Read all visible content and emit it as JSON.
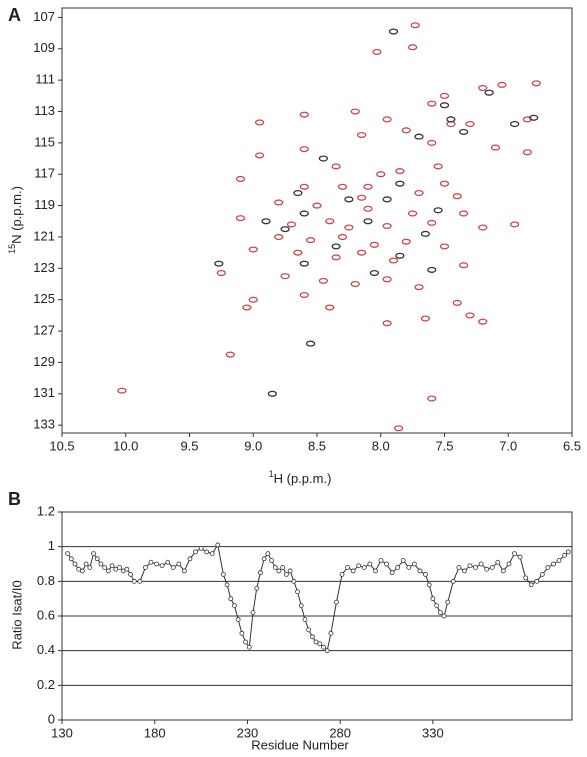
{
  "chart_data": [
    {
      "type": "scatter",
      "panel_label": "A",
      "x_label_sup": "1",
      "x_label": "H (p.p.m.)",
      "y_label_sup": "15",
      "y_label": "N (p.p.m.)",
      "xlim": [
        10.5,
        6.5
      ],
      "xticks": [
        10.5,
        {
          "value": 10,
          "label": "10.0"
        },
        9.5,
        {
          "value": 9,
          "label": "9.0"
        },
        8.5,
        {
          "value": 8,
          "label": "8.0"
        },
        7.5,
        {
          "value": 7,
          "label": "7.0"
        },
        6.5
      ],
      "ylim": [
        106.4,
        133.5
      ],
      "yticks": [
        107,
        109,
        111,
        113,
        115,
        117,
        119,
        121,
        123,
        125,
        127,
        129,
        131,
        133
      ],
      "series": [
        {
          "color": "#c5484c",
          "x": [
            7.73,
            7.75,
            8.03,
            7.2,
            7.05,
            6.78,
            7.6,
            7.5,
            8.6,
            8.2,
            7.95,
            7.45,
            7.3,
            6.85,
            8.95,
            8.15,
            7.8,
            7.6,
            7.1,
            8.95,
            8.6,
            6.85,
            8.35,
            8.0,
            7.85,
            7.55,
            8.6,
            8.3,
            8.15,
            7.7,
            7.4,
            8.8,
            8.5,
            8.1,
            7.75,
            7.35,
            9.1,
            8.7,
            8.4,
            8.25,
            7.95,
            7.6,
            7.2,
            6.95,
            8.8,
            8.55,
            8.3,
            8.05,
            7.8,
            7.5,
            9.0,
            8.65,
            8.35,
            8.15,
            7.9,
            7.35,
            9.25,
            8.75,
            8.45,
            8.2,
            7.95,
            7.7,
            9.0,
            8.6,
            8.4,
            7.4,
            9.05,
            7.3,
            7.95,
            7.65,
            7.2,
            9.18,
            10.03,
            7.6,
            7.86,
            8.1,
            7.5,
            9.1
          ],
          "y": [
            107.5,
            108.9,
            109.2,
            111.5,
            111.3,
            111.2,
            112.5,
            112.0,
            113.2,
            113.0,
            113.5,
            113.8,
            113.8,
            113.5,
            113.7,
            114.5,
            114.2,
            115.0,
            115.3,
            115.8,
            115.4,
            115.6,
            116.5,
            117.0,
            116.8,
            116.5,
            117.8,
            117.8,
            118.5,
            118.2,
            118.4,
            118.8,
            119.0,
            119.2,
            119.5,
            119.5,
            119.8,
            120.2,
            120.0,
            120.4,
            120.3,
            120.1,
            120.4,
            120.2,
            121.0,
            121.2,
            121.0,
            121.5,
            121.3,
            121.6,
            121.8,
            122.0,
            122.3,
            122.0,
            122.5,
            122.8,
            123.3,
            123.5,
            123.8,
            124.0,
            123.7,
            124.2,
            125.0,
            124.7,
            125.5,
            125.2,
            125.5,
            126.0,
            126.5,
            126.2,
            126.4,
            128.5,
            130.8,
            131.3,
            133.2,
            117.8,
            117.6,
            117.3
          ]
        },
        {
          "color": "#333333",
          "x": [
            7.9,
            7.15,
            7.5,
            7.45,
            7.35,
            6.95,
            6.8,
            7.7,
            8.65,
            8.25,
            7.95,
            7.55,
            8.6,
            8.1,
            7.65,
            8.75,
            8.35,
            7.85,
            9.27,
            8.6,
            8.05,
            7.6,
            8.55,
            8.85,
            8.45,
            7.85,
            8.9
          ],
          "y": [
            107.9,
            111.8,
            112.6,
            113.5,
            114.3,
            113.8,
            113.4,
            114.6,
            118.2,
            118.6,
            118.6,
            119.3,
            119.5,
            120.0,
            120.8,
            120.5,
            121.6,
            122.2,
            122.7,
            122.7,
            123.3,
            123.1,
            127.8,
            131.0,
            116.0,
            117.6,
            120.0
          ]
        }
      ]
    },
    {
      "type": "line",
      "panel_label": "B",
      "x_label": "Residue Number",
      "y_label": "Ratio Isat/I0",
      "xlim": [
        130,
        405
      ],
      "xticks": [
        130,
        180,
        230,
        280,
        330
      ],
      "ylim": [
        0,
        1.2
      ],
      "yticks": [
        0,
        0.2,
        0.4,
        0.6,
        0.8,
        1,
        1.2
      ],
      "grid": true,
      "series": [
        {
          "color": "#333333",
          "x": [
            133,
            135,
            137,
            139,
            141,
            143,
            145,
            147,
            149,
            151,
            153,
            155,
            157,
            159,
            161,
            163,
            165,
            167,
            169,
            172,
            175,
            178,
            181,
            184,
            187,
            190,
            193,
            196,
            199,
            202,
            205,
            208,
            211,
            214,
            217,
            219,
            221,
            223,
            225,
            227,
            229,
            231,
            233,
            235,
            237,
            239,
            241,
            243,
            245,
            247,
            249,
            251,
            253,
            255,
            257,
            259,
            261,
            263,
            265,
            267,
            269,
            271,
            273,
            275,
            278,
            281,
            284,
            287,
            290,
            293,
            296,
            299,
            302,
            305,
            308,
            311,
            314,
            317,
            320,
            323,
            326,
            328,
            330,
            332,
            334,
            336,
            338,
            341,
            344,
            347,
            350,
            353,
            356,
            359,
            362,
            365,
            368,
            371,
            374,
            377,
            380,
            383,
            386,
            389,
            392,
            395,
            398,
            401,
            403
          ],
          "values": [
            0.96,
            0.93,
            0.9,
            0.87,
            0.86,
            0.9,
            0.88,
            0.96,
            0.93,
            0.9,
            0.88,
            0.86,
            0.89,
            0.87,
            0.88,
            0.86,
            0.87,
            0.84,
            0.8,
            0.8,
            0.88,
            0.91,
            0.9,
            0.89,
            0.91,
            0.88,
            0.9,
            0.86,
            0.93,
            0.97,
            0.99,
            0.97,
            0.96,
            1.01,
            0.84,
            0.78,
            0.7,
            0.66,
            0.58,
            0.5,
            0.45,
            0.42,
            0.62,
            0.76,
            0.85,
            0.93,
            0.96,
            0.92,
            0.88,
            0.86,
            0.88,
            0.84,
            0.86,
            0.8,
            0.74,
            0.66,
            0.58,
            0.52,
            0.48,
            0.45,
            0.44,
            0.42,
            0.4,
            0.5,
            0.68,
            0.84,
            0.88,
            0.86,
            0.89,
            0.88,
            0.9,
            0.86,
            0.92,
            0.9,
            0.85,
            0.88,
            0.92,
            0.88,
            0.9,
            0.86,
            0.84,
            0.78,
            0.7,
            0.66,
            0.62,
            0.6,
            0.68,
            0.8,
            0.88,
            0.86,
            0.89,
            0.88,
            0.9,
            0.87,
            0.88,
            0.91,
            0.86,
            0.9,
            0.96,
            0.94,
            0.82,
            0.78,
            0.8,
            0.84,
            0.88,
            0.9,
            0.92,
            0.95,
            0.97
          ]
        }
      ]
    }
  ]
}
